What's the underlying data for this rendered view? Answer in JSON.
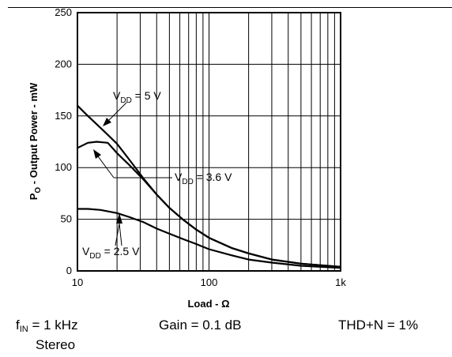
{
  "chart_data": {
    "type": "line",
    "xscale": "log",
    "xlim": [
      10,
      1000
    ],
    "ylim": [
      0,
      250
    ],
    "xlabel": "Load - Ω",
    "ylabel": "P",
    "ylabel_sub": "O",
    "ylabel_rest": " - Output Power - mW",
    "xticks": [
      "10",
      "100",
      "1k"
    ],
    "xtick_values": [
      10,
      100,
      1000
    ],
    "yticks": [
      "0",
      "50",
      "100",
      "150",
      "200",
      "250"
    ],
    "ytick_values": [
      0,
      50,
      100,
      150,
      200,
      250
    ],
    "grid": true,
    "series": [
      {
        "name": "VDD = 5 V",
        "label_main": "V",
        "label_sub": "DD",
        "label_rest": " = 5 V",
        "x": [
          10,
          12,
          16,
          20,
          25,
          32,
          40,
          50,
          63,
          80,
          100,
          150,
          200,
          300,
          500,
          1000
        ],
        "y": [
          160,
          150,
          135,
          123,
          107,
          89,
          74,
          61,
          50,
          40,
          32,
          22,
          17,
          11,
          7,
          4
        ]
      },
      {
        "name": "VDD = 3.6 V",
        "label_main": "V",
        "label_sub": "DD",
        "label_rest": " = 3.6 V",
        "x": [
          10,
          12,
          14,
          17,
          20,
          25,
          32,
          40,
          50,
          63,
          80,
          100,
          150,
          200,
          300,
          500,
          1000
        ],
        "y": [
          119,
          124,
          125,
          124,
          114,
          102,
          88,
          74,
          61,
          50,
          40,
          32,
          22,
          17,
          11,
          7,
          4
        ]
      },
      {
        "name": "VDD = 2.5 V",
        "label_main": "V",
        "label_sub": "DD",
        "label_rest": " = 2.5 V",
        "x": [
          10,
          12,
          15,
          20,
          25,
          32,
          40,
          50,
          63,
          80,
          100,
          150,
          200,
          300,
          500,
          1000
        ],
        "y": [
          60,
          60,
          59,
          56,
          52,
          47,
          41,
          36,
          31,
          26,
          21,
          15,
          11,
          8,
          5,
          3
        ]
      }
    ]
  },
  "conditions": {
    "fin_main": "f",
    "fin_sub": "IN",
    "fin_rest": " = 1 kHz",
    "stereo": "Stereo",
    "gain": "Gain = 0.1 dB",
    "thd": "THD+N = 1%"
  }
}
